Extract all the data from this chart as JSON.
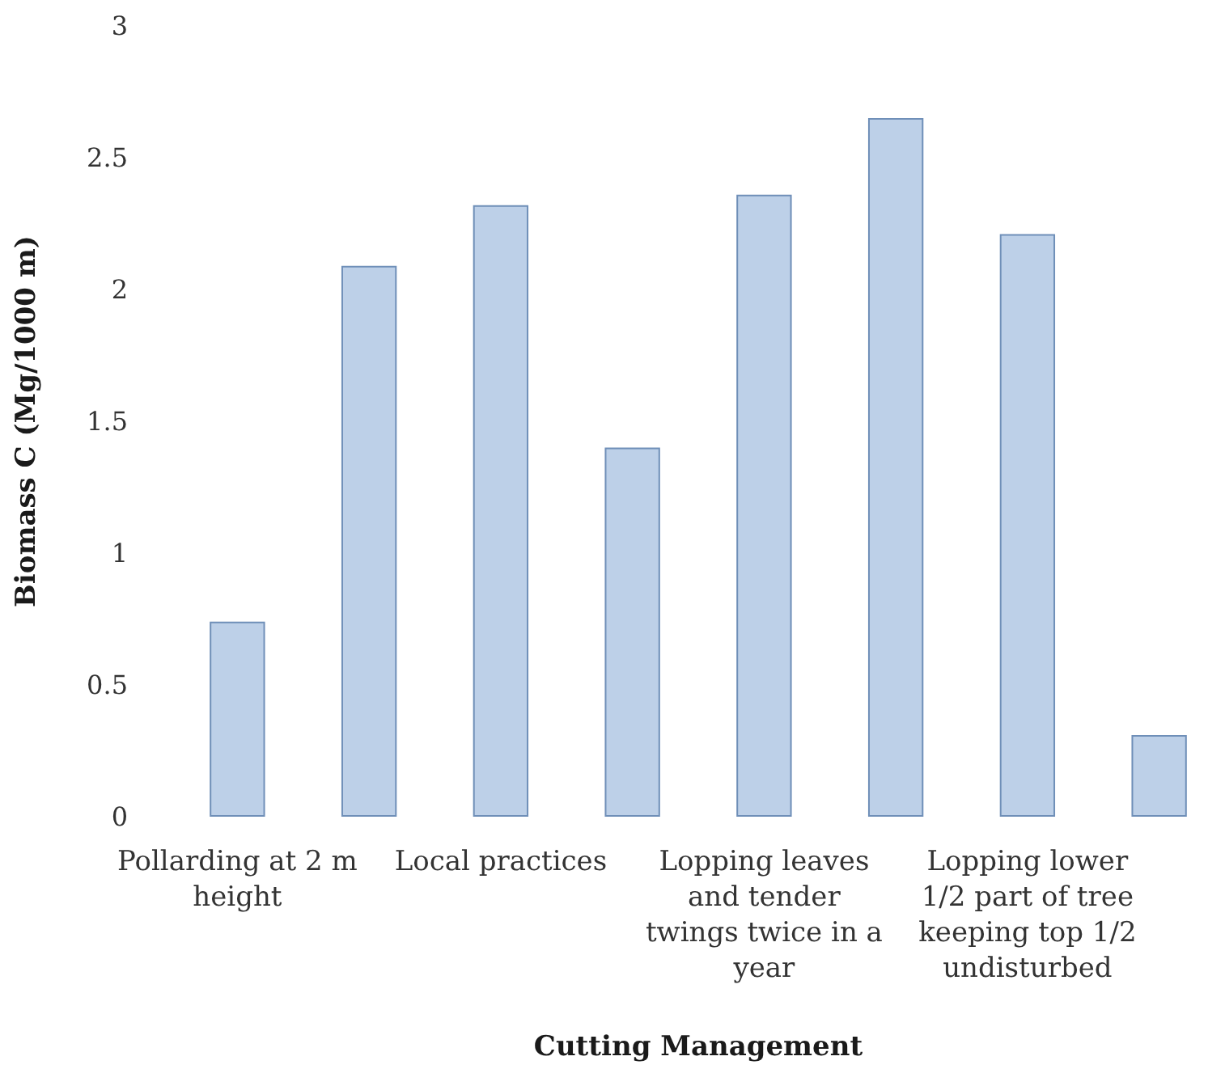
{
  "chart_data": {
    "type": "bar",
    "xlabel": "Cutting Management",
    "ylabel": "Biomass C (Mg/1000 m)",
    "categories": [
      "Pollarding at 2 m height",
      null,
      "Local practices",
      null,
      "Lopping leaves and tender twings twice in a year",
      null,
      "Lopping lower 1/2 part of tree keeping top 1/2 undisturbed",
      null
    ],
    "values": [
      0.74,
      2.09,
      2.32,
      1.4,
      2.36,
      2.65,
      2.21,
      0.31
    ],
    "color": "#bdd0e8",
    "ylim": [
      0,
      3
    ],
    "yticks": [
      0,
      0.5,
      1,
      1.5,
      2,
      2.5,
      3
    ],
    "grid": false
  }
}
